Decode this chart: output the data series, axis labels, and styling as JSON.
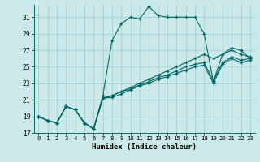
{
  "xlabel": "Humidex (Indice chaleur)",
  "background_color": "#cce9e9",
  "grid_color": "#a0cccc",
  "line_color": "#006666",
  "xlim": [
    -0.5,
    23.5
  ],
  "ylim": [
    17,
    32.5
  ],
  "yticks": [
    17,
    19,
    21,
    23,
    25,
    27,
    29,
    31
  ],
  "xticks": [
    0,
    1,
    2,
    3,
    4,
    5,
    6,
    7,
    8,
    9,
    10,
    11,
    12,
    13,
    14,
    15,
    16,
    17,
    18,
    19,
    20,
    21,
    22,
    23
  ],
  "curve_main": [
    19.0,
    18.5,
    18.2,
    20.2,
    19.8,
    18.2,
    17.5,
    21.5,
    28.2,
    30.2,
    31.0,
    30.8,
    32.3,
    31.2,
    31.0,
    31.0,
    31.0,
    31.0,
    29.0,
    23.2,
    26.5,
    27.3,
    27.0,
    26.0
  ],
  "curve_a": [
    19.0,
    18.5,
    18.2,
    20.2,
    19.8,
    18.2,
    17.5,
    21.2,
    21.5,
    22.0,
    22.5,
    23.0,
    23.5,
    24.0,
    24.5,
    25.0,
    25.5,
    26.0,
    26.5,
    26.0,
    26.5,
    27.0,
    26.5,
    26.2
  ],
  "curve_b": [
    19.0,
    18.5,
    18.2,
    20.2,
    19.8,
    18.2,
    17.5,
    21.2,
    21.5,
    22.0,
    22.3,
    22.8,
    23.2,
    23.7,
    24.0,
    24.5,
    25.0,
    25.3,
    25.5,
    23.3,
    25.5,
    26.2,
    25.8,
    26.0
  ],
  "curve_c": [
    19.0,
    18.5,
    18.2,
    20.2,
    19.8,
    18.2,
    17.5,
    21.2,
    21.3,
    21.7,
    22.2,
    22.7,
    23.0,
    23.5,
    23.8,
    24.2,
    24.6,
    25.0,
    25.2,
    23.0,
    25.3,
    26.0,
    25.5,
    25.8
  ]
}
